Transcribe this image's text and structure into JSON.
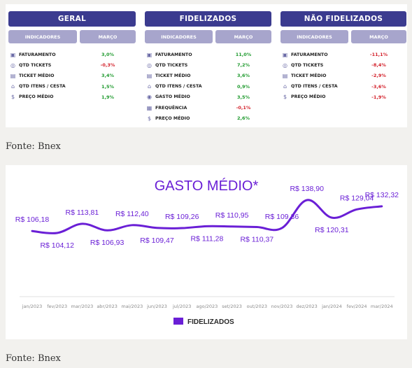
{
  "tables": [
    {
      "title": "GERAL",
      "col_indicadores": "INDICADORES",
      "col_mes": "MARÇO",
      "rows": [
        {
          "icon": "money-bag-icon",
          "label": "FATURAMENTO",
          "value": "3,0%",
          "sign": "pos"
        },
        {
          "icon": "ticket-icon",
          "label": "QTD TICKETS",
          "value": "-0,3%",
          "sign": "neg"
        },
        {
          "icon": "receipt-icon",
          "label": "TICKET MÉDIO",
          "value": "3,4%",
          "sign": "pos"
        },
        {
          "icon": "cart-icon",
          "label": "QTD ITENS / CESTA",
          "value": "1,5%",
          "sign": "pos"
        },
        {
          "icon": "dollar-icon",
          "label": "PREÇO MÉDIO",
          "value": "1,9%",
          "sign": "pos"
        }
      ]
    },
    {
      "title": "FIDELIZADOS",
      "col_indicadores": "INDICADORES",
      "col_mes": "MARÇO",
      "rows": [
        {
          "icon": "money-bag-icon",
          "label": "FATURAMENTO",
          "value": "11,0%",
          "sign": "pos"
        },
        {
          "icon": "ticket-icon",
          "label": "QTD TICKETS",
          "value": "7,2%",
          "sign": "pos"
        },
        {
          "icon": "receipt-icon",
          "label": "TICKET MÉDIO",
          "value": "3,6%",
          "sign": "pos"
        },
        {
          "icon": "cart-icon",
          "label": "QTD ITENS / CESTA",
          "value": "0,9%",
          "sign": "pos"
        },
        {
          "icon": "coins-icon",
          "label": "GASTO MÉDIO",
          "value": "3,5%",
          "sign": "pos"
        },
        {
          "icon": "calendar-icon",
          "label": "FREQUÊNCIA",
          "value": "-0,1%",
          "sign": "neg"
        },
        {
          "icon": "dollar-icon",
          "label": "PREÇO MÉDIO",
          "value": "2,6%",
          "sign": "pos"
        }
      ]
    },
    {
      "title": "NÃO FIDELIZADOS",
      "col_indicadores": "INDICADORES",
      "col_mes": "MARÇO",
      "rows": [
        {
          "icon": "money-bag-icon",
          "label": "FATURAMENTO",
          "value": "-11,1%",
          "sign": "neg"
        },
        {
          "icon": "ticket-icon",
          "label": "QTD TICKETS",
          "value": "-8,4%",
          "sign": "neg"
        },
        {
          "icon": "receipt-icon",
          "label": "TICKET MÉDIO",
          "value": "-2,9%",
          "sign": "neg"
        },
        {
          "icon": "cart-icon",
          "label": "QTD ITENS / CESTA",
          "value": "-3,6%",
          "sign": "neg"
        },
        {
          "icon": "dollar-icon",
          "label": "PREÇO MÉDIO",
          "value": "-1,9%",
          "sign": "neg"
        }
      ]
    }
  ],
  "source_1": "Fonte: Bnex",
  "source_2": "Fonte: Bnex",
  "colors": {
    "title_bar": "#3b3b8f",
    "column_header": "#a7a5cc",
    "positive": "#1f9a2e",
    "negative": "#d3202a",
    "series_line": "#6a1fd6"
  },
  "chart_data": {
    "type": "line",
    "title": "GASTO MÉDIO*",
    "categories": [
      "jan/2023",
      "fev/2023",
      "mar/2023",
      "abr/2023",
      "mai/2023",
      "jun/2023",
      "jul/2023",
      "ago/2023",
      "set/2023",
      "out/2023",
      "nov/2023",
      "dez/2023",
      "jan/2024",
      "fev/2024",
      "mar/2024"
    ],
    "series": [
      {
        "name": "FIDELIZADOS",
        "values": [
          106.18,
          104.12,
          113.81,
          106.93,
          112.4,
          109.47,
          109.26,
          111.28,
          110.95,
          110.37,
          109.36,
          138.9,
          120.31,
          129.04,
          132.32
        ],
        "labels": [
          "R$ 106,18",
          "R$ 104,12",
          "R$ 113,81",
          "R$ 106,93",
          "R$ 112,40",
          "R$ 109,47",
          "R$ 109,26",
          "R$ 111,28",
          "R$ 110,95",
          "R$ 110,37",
          "R$ 109,36",
          "R$ 138,90",
          "R$ 120,31",
          "R$ 129,04",
          "R$ 132,32"
        ],
        "label_positions": [
          "above",
          "below",
          "above",
          "below",
          "above",
          "below",
          "above",
          "below",
          "above",
          "below",
          "above",
          "above",
          "below",
          "above",
          "above"
        ]
      }
    ],
    "legend": "bottom-center",
    "grid": false
  }
}
